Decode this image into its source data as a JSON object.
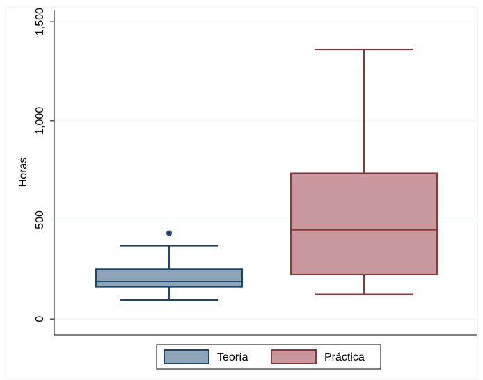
{
  "chart_data": {
    "type": "box",
    "ylabel": "Horas",
    "ylim": [
      -80,
      1560
    ],
    "y_ticks": [
      0,
      500,
      1000,
      1500
    ],
    "y_tick_labels": [
      "0",
      "500",
      "1,000",
      "1,500"
    ],
    "grid": true,
    "legend_position": "bottom",
    "series": [
      {
        "name": "Teoría",
        "min": 95,
        "q1": 163,
        "median": 190,
        "q3": 252,
        "max": 370,
        "outliers": [
          433
        ],
        "fill": "#8da4b9",
        "stroke": "#1a476f"
      },
      {
        "name": "Práctica",
        "min": 125,
        "q1": 225,
        "median": 450,
        "q3": 735,
        "max": 1360,
        "outliers": [],
        "fill": "#c9989c",
        "stroke": "#90353b"
      }
    ]
  }
}
